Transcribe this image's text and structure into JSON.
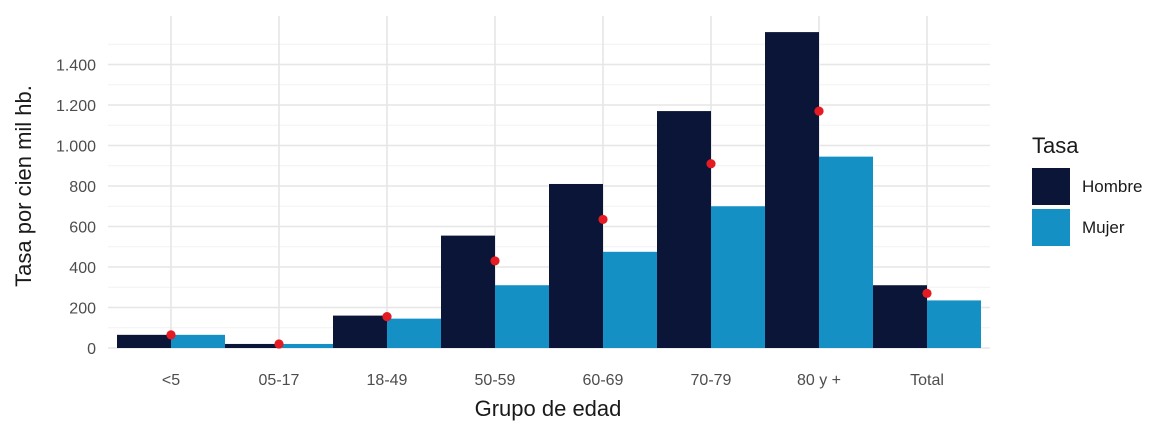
{
  "chart_data": {
    "type": "bar",
    "xlabel": "Grupo de edad",
    "ylabel": "Tasa por cien mil hb.",
    "categories": [
      "<5",
      "05-17",
      "18-49",
      "50-59",
      "60-69",
      "70-79",
      "80 y +",
      "Total"
    ],
    "series": [
      {
        "name": "Hombre",
        "color": "#0b1537",
        "values": [
          65,
          20,
          160,
          555,
          810,
          1170,
          1560,
          310
        ]
      },
      {
        "name": "Mujer",
        "color": "#1490c4",
        "values": [
          65,
          20,
          145,
          310,
          475,
          700,
          945,
          235
        ]
      }
    ],
    "points": {
      "color": "#e51b23",
      "values": [
        65,
        20,
        155,
        430,
        635,
        910,
        1170,
        270
      ]
    },
    "ylim": [
      0,
      1600
    ],
    "yticks": [
      0,
      200,
      400,
      600,
      800,
      1000,
      1200,
      1400
    ],
    "ytick_labels": [
      "0",
      "200",
      "400",
      "600",
      "800",
      "1.000",
      "1.200",
      "1.400"
    ],
    "legend": {
      "title": "Tasa",
      "position": "right"
    },
    "grid": true
  }
}
